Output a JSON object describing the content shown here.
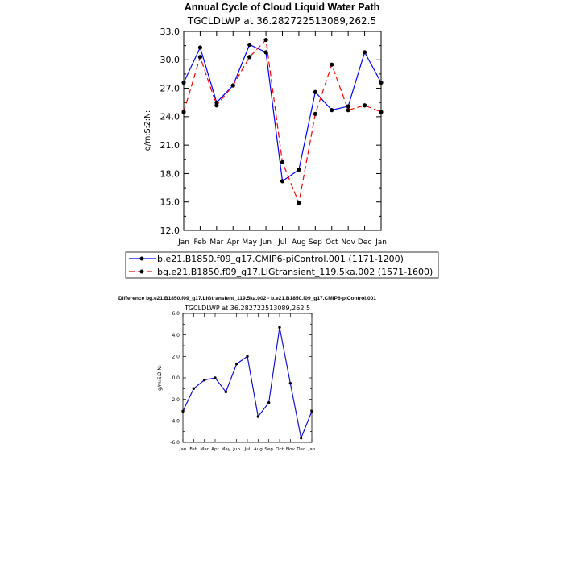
{
  "chart_data": [
    {
      "type": "line",
      "title": "Annual Cycle of Cloud Liquid Water Path",
      "subtitle": "TGCLDLWP at 36.282722513089,262.5",
      "ylabel": "g/m:S:2:N:",
      "ylim": [
        12.0,
        33.0
      ],
      "yticks": [
        "12.0",
        "15.0",
        "18.0",
        "21.0",
        "24.0",
        "27.0",
        "30.0",
        "33.0"
      ],
      "ytick_values": [
        12,
        15,
        18,
        21,
        24,
        27,
        30,
        33
      ],
      "categories": [
        "Jan",
        "Feb",
        "Mar",
        "Apr",
        "May",
        "Jun",
        "Jul",
        "Aug",
        "Sep",
        "Oct",
        "Nov",
        "Dec",
        "Jan"
      ],
      "series": [
        {
          "name": "b.e21.B1850.f09_g17.CMIP6-piControl.001 (1171-1200)",
          "color": "#0000ff",
          "dash": "solid",
          "values": [
            27.6,
            31.3,
            25.5,
            27.3,
            31.6,
            30.8,
            17.2,
            18.4,
            26.6,
            24.7,
            25.1,
            30.8,
            27.6
          ]
        },
        {
          "name": "bg.e21.B1850.f09_g17.LIGtransient_119.5ka.002 (1571-1600)",
          "color": "#ff0000",
          "dash": "dashed",
          "values": [
            24.5,
            30.3,
            25.2,
            27.3,
            30.3,
            32.1,
            19.2,
            14.9,
            24.3,
            29.5,
            24.7,
            25.2,
            24.5
          ]
        }
      ],
      "legend_position": "bottom"
    },
    {
      "type": "line",
      "title": "Difference bg.e21.B1850.f09_g17.LIGtransient_119.5ka.002 - b.e21.B1850.f09_g17.CMIP6-piControl.001",
      "subtitle": "TGCLDLWP at 36.282722513089,262.5",
      "ylabel": "g/m:S:2:N:",
      "ylim": [
        -6.0,
        6.0
      ],
      "yticks": [
        "-6.0",
        "-4.0",
        "-2.0",
        "0.0",
        "2.0",
        "4.0",
        "6.0"
      ],
      "ytick_values": [
        -6,
        -4,
        -2,
        0,
        2,
        4,
        6
      ],
      "categories": [
        "Jan",
        "Feb",
        "Mar",
        "Apr",
        "May",
        "Jun",
        "Jul",
        "Aug",
        "Sep",
        "Oct",
        "Nov",
        "Dec",
        "Jan"
      ],
      "series": [
        {
          "name": "Difference",
          "color": "#0000cc",
          "dash": "solid",
          "values": [
            -3.1,
            -1.0,
            -0.2,
            0.0,
            -1.3,
            1.3,
            2.0,
            -3.6,
            -2.3,
            4.7,
            -0.5,
            -5.6,
            -3.1
          ]
        }
      ]
    }
  ]
}
